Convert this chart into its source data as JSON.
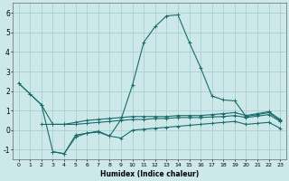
{
  "xlabel": "Humidex (Indice chaleur)",
  "background_color": "#cce8e8",
  "grid_color": "#aad0d0",
  "line_color": "#1a6b6b",
  "xlim": [
    -0.5,
    23.5
  ],
  "ylim": [
    -1.5,
    6.5
  ],
  "xticks": [
    0,
    1,
    2,
    3,
    4,
    5,
    6,
    7,
    8,
    9,
    10,
    11,
    12,
    13,
    14,
    15,
    16,
    17,
    18,
    19,
    20,
    21,
    22,
    23
  ],
  "yticks": [
    -1,
    0,
    1,
    2,
    3,
    4,
    5,
    6
  ],
  "series_peak_x": [
    0,
    1,
    2,
    3,
    4,
    5,
    6,
    7,
    8,
    9,
    10,
    11,
    12,
    13,
    14,
    15,
    16,
    17,
    18,
    19,
    20,
    21,
    22,
    23
  ],
  "series_peak_y": [
    2.4,
    1.85,
    1.3,
    -1.1,
    -1.2,
    -0.25,
    -0.15,
    -0.05,
    -0.3,
    0.55,
    2.3,
    4.5,
    5.3,
    5.85,
    5.9,
    4.5,
    3.2,
    1.75,
    1.55,
    1.5,
    0.7,
    0.8,
    0.9,
    0.5
  ],
  "series_upper_x": [
    0,
    1,
    2,
    3,
    4,
    5,
    6,
    7,
    8,
    9,
    10,
    11,
    12,
    13,
    14,
    15,
    16,
    17,
    18,
    19,
    20,
    21,
    22,
    23
  ],
  "series_upper_y": [
    2.4,
    1.85,
    1.3,
    0.3,
    0.3,
    0.4,
    0.5,
    0.55,
    0.6,
    0.65,
    0.7,
    0.7,
    0.7,
    0.7,
    0.75,
    0.75,
    0.75,
    0.8,
    0.85,
    0.9,
    0.75,
    0.85,
    0.95,
    0.55
  ],
  "series_mid_x": [
    2,
    3,
    4,
    5,
    6,
    7,
    8,
    9,
    10,
    11,
    12,
    13,
    14,
    15,
    16,
    17,
    18,
    19,
    20,
    21,
    22,
    23
  ],
  "series_mid_y": [
    0.3,
    0.3,
    0.3,
    0.3,
    0.35,
    0.4,
    0.45,
    0.5,
    0.55,
    0.55,
    0.6,
    0.6,
    0.65,
    0.65,
    0.65,
    0.68,
    0.7,
    0.75,
    0.65,
    0.72,
    0.8,
    0.45
  ],
  "series_low_x": [
    3,
    4,
    5,
    6,
    7,
    8,
    9,
    10,
    11,
    12,
    13,
    14,
    15,
    16,
    17,
    18,
    19,
    20,
    21,
    22,
    23
  ],
  "series_low_y": [
    -1.1,
    -1.2,
    -0.35,
    -0.15,
    -0.1,
    -0.3,
    -0.4,
    0.0,
    0.05,
    0.1,
    0.15,
    0.2,
    0.25,
    0.3,
    0.35,
    0.4,
    0.45,
    0.3,
    0.35,
    0.4,
    0.1
  ]
}
